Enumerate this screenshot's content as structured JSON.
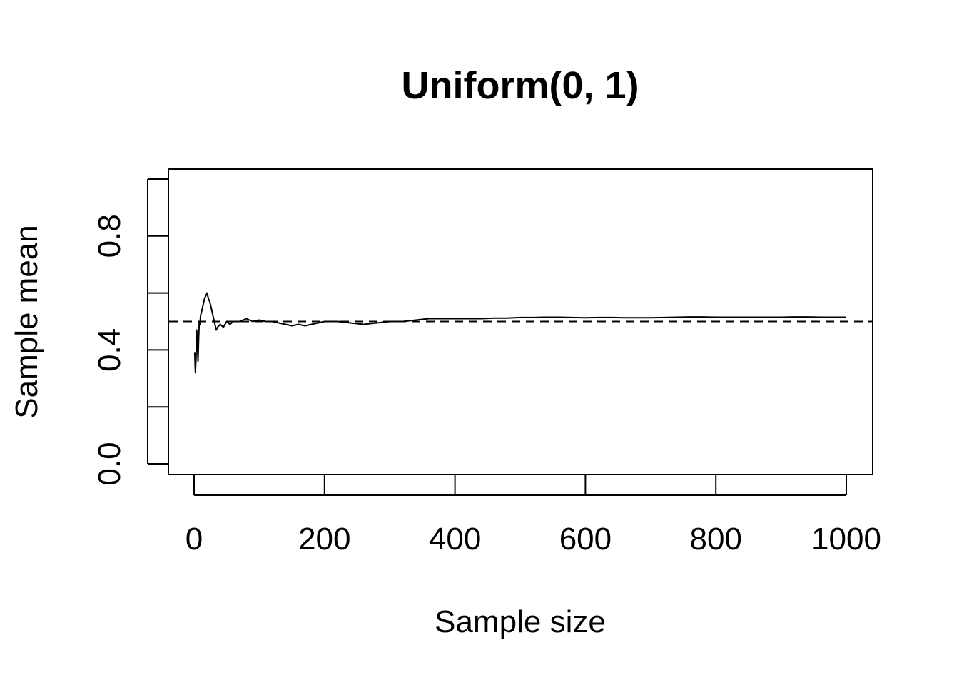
{
  "chart_data": {
    "type": "line",
    "title": "Uniform(0, 1)",
    "xlabel": "Sample size",
    "ylabel": "Sample mean",
    "xlim": [
      0,
      1000
    ],
    "ylim": [
      0,
      1
    ],
    "x_ticks": [
      0,
      200,
      400,
      600,
      800,
      1000
    ],
    "x_tick_labels": [
      "0",
      "200",
      "400",
      "600",
      "800",
      "1000"
    ],
    "y_ticks": [
      0.0,
      0.2,
      0.4,
      0.6,
      0.8,
      1.0
    ],
    "y_tick_labels": [
      "0.0",
      "",
      "0.4",
      "",
      "0.8",
      ""
    ],
    "grid": false,
    "reference_line": {
      "y": 0.5,
      "style": "dashed"
    },
    "line_color": "#000000",
    "series": [
      {
        "x": [
          1,
          2,
          3,
          4,
          5,
          6,
          7,
          8,
          9,
          10,
          12,
          14,
          16,
          18,
          20,
          22,
          24,
          26,
          28,
          30,
          32,
          34,
          36,
          40,
          45,
          50,
          55,
          60,
          70,
          80,
          90,
          100,
          110,
          120,
          130,
          140,
          150,
          160,
          170,
          180,
          190,
          200,
          220,
          240,
          260,
          280,
          300,
          320,
          340,
          360,
          380,
          400,
          420,
          440,
          460,
          480,
          500,
          520,
          540,
          560,
          580,
          600,
          620,
          640,
          660,
          680,
          700,
          720,
          740,
          760,
          780,
          800,
          820,
          840,
          860,
          880,
          900,
          920,
          940,
          960,
          980,
          1000
        ],
        "y": [
          0.39,
          0.32,
          0.37,
          0.47,
          0.42,
          0.36,
          0.44,
          0.5,
          0.49,
          0.52,
          0.54,
          0.56,
          0.58,
          0.59,
          0.6,
          0.58,
          0.57,
          0.55,
          0.53,
          0.51,
          0.49,
          0.47,
          0.48,
          0.49,
          0.48,
          0.5,
          0.49,
          0.5,
          0.5,
          0.51,
          0.5,
          0.505,
          0.5,
          0.5,
          0.495,
          0.49,
          0.485,
          0.49,
          0.485,
          0.49,
          0.495,
          0.5,
          0.5,
          0.495,
          0.49,
          0.495,
          0.5,
          0.5,
          0.505,
          0.51,
          0.51,
          0.51,
          0.51,
          0.51,
          0.512,
          0.512,
          0.514,
          0.514,
          0.515,
          0.515,
          0.514,
          0.513,
          0.514,
          0.514,
          0.513,
          0.513,
          0.513,
          0.514,
          0.515,
          0.516,
          0.516,
          0.515,
          0.515,
          0.515,
          0.515,
          0.515,
          0.515,
          0.516,
          0.516,
          0.515,
          0.515,
          0.515
        ]
      }
    ]
  }
}
